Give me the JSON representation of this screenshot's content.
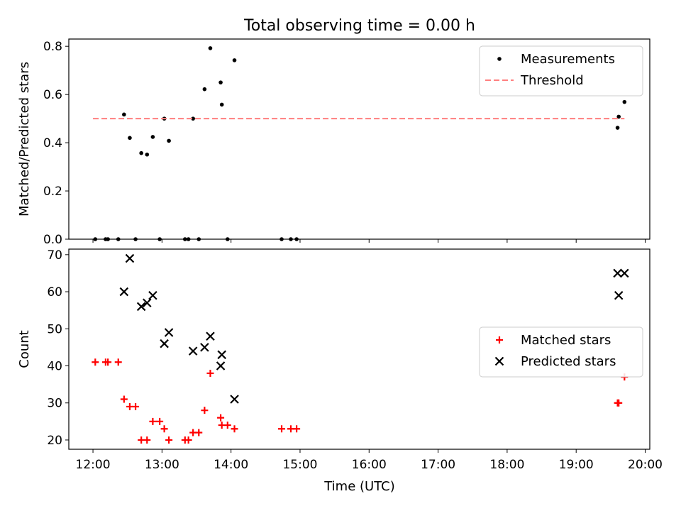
{
  "title": "Total observing time = 0.00 h",
  "xlabel": "Time (UTC)",
  "x_ticks": [
    "12:00",
    "13:00",
    "14:00",
    "15:00",
    "16:00",
    "17:00",
    "18:00",
    "19:00",
    "20:00"
  ],
  "chart_data": [
    {
      "type": "scatter",
      "ylabel": "Matched/Predicted stars",
      "xlim": [
        "11:39",
        "20:04"
      ],
      "ylim": [
        0,
        0.83
      ],
      "y_ticks": [
        "0.0",
        "0.2",
        "0.4",
        "0.6",
        "0.8"
      ],
      "legend_position": "upper right",
      "grid": false,
      "series": [
        {
          "name": "Measurements",
          "kind": "points",
          "color": "#000000",
          "points": [
            {
              "x": "12:02",
              "y": 0.0
            },
            {
              "x": "12:11",
              "y": 0.0
            },
            {
              "x": "12:13",
              "y": 0.0
            },
            {
              "x": "12:22",
              "y": 0.0
            },
            {
              "x": "12:27",
              "y": 0.517
            },
            {
              "x": "12:32",
              "y": 0.42
            },
            {
              "x": "12:37",
              "y": 0.0
            },
            {
              "x": "12:42",
              "y": 0.357
            },
            {
              "x": "12:47",
              "y": 0.351
            },
            {
              "x": "12:52",
              "y": 0.424
            },
            {
              "x": "12:58",
              "y": 0.0
            },
            {
              "x": "13:02",
              "y": 0.5
            },
            {
              "x": "13:06",
              "y": 0.408
            },
            {
              "x": "13:20",
              "y": 0.0
            },
            {
              "x": "13:23",
              "y": 0.0
            },
            {
              "x": "13:27",
              "y": 0.5
            },
            {
              "x": "13:32",
              "y": 0.0
            },
            {
              "x": "13:37",
              "y": 0.622
            },
            {
              "x": "13:42",
              "y": 0.792
            },
            {
              "x": "13:51",
              "y": 0.65
            },
            {
              "x": "13:52",
              "y": 0.558
            },
            {
              "x": "13:57",
              "y": 0.0
            },
            {
              "x": "14:03",
              "y": 0.742
            },
            {
              "x": "14:44",
              "y": 0.0
            },
            {
              "x": "14:52",
              "y": 0.0
            },
            {
              "x": "14:57",
              "y": 0.0
            },
            {
              "x": "19:36",
              "y": 0.462
            },
            {
              "x": "19:37",
              "y": 0.508
            },
            {
              "x": "19:42",
              "y": 0.569
            }
          ]
        },
        {
          "name": "Threshold",
          "kind": "dashed-line",
          "color": "#ff7f7f",
          "points": [
            {
              "x": "12:00",
              "y": 0.5
            },
            {
              "x": "19:42",
              "y": 0.5
            }
          ]
        }
      ]
    },
    {
      "type": "scatter",
      "ylabel": "Count",
      "xlim": [
        "11:39",
        "20:04"
      ],
      "ylim": [
        17.5,
        71.5
      ],
      "y_ticks": [
        "20",
        "30",
        "40",
        "50",
        "60",
        "70"
      ],
      "legend_position": "center right",
      "grid": false,
      "series": [
        {
          "name": "Matched stars",
          "marker": "+",
          "color": "#ff0000",
          "points": [
            {
              "x": "12:02",
              "y": 41
            },
            {
              "x": "12:11",
              "y": 41
            },
            {
              "x": "12:13",
              "y": 41
            },
            {
              "x": "12:22",
              "y": 41
            },
            {
              "x": "12:27",
              "y": 31
            },
            {
              "x": "12:32",
              "y": 29
            },
            {
              "x": "12:37",
              "y": 29
            },
            {
              "x": "12:42",
              "y": 20
            },
            {
              "x": "12:47",
              "y": 20
            },
            {
              "x": "12:52",
              "y": 25
            },
            {
              "x": "12:58",
              "y": 25
            },
            {
              "x": "13:02",
              "y": 23
            },
            {
              "x": "13:06",
              "y": 20
            },
            {
              "x": "13:20",
              "y": 20
            },
            {
              "x": "13:23",
              "y": 20
            },
            {
              "x": "13:27",
              "y": 22
            },
            {
              "x": "13:32",
              "y": 22
            },
            {
              "x": "13:37",
              "y": 28
            },
            {
              "x": "13:42",
              "y": 38
            },
            {
              "x": "13:51",
              "y": 26
            },
            {
              "x": "13:52",
              "y": 24
            },
            {
              "x": "13:57",
              "y": 24
            },
            {
              "x": "14:03",
              "y": 23
            },
            {
              "x": "14:44",
              "y": 23
            },
            {
              "x": "14:52",
              "y": 23
            },
            {
              "x": "14:57",
              "y": 23
            },
            {
              "x": "19:36",
              "y": 30
            },
            {
              "x": "19:37",
              "y": 30
            },
            {
              "x": "19:42",
              "y": 37
            }
          ]
        },
        {
          "name": "Predicted stars",
          "marker": "x",
          "color": "#000000",
          "points": [
            {
              "x": "12:27",
              "y": 60
            },
            {
              "x": "12:32",
              "y": 69
            },
            {
              "x": "12:42",
              "y": 56
            },
            {
              "x": "12:47",
              "y": 57
            },
            {
              "x": "12:52",
              "y": 59
            },
            {
              "x": "13:02",
              "y": 46
            },
            {
              "x": "13:06",
              "y": 49
            },
            {
              "x": "13:27",
              "y": 44
            },
            {
              "x": "13:37",
              "y": 45
            },
            {
              "x": "13:42",
              "y": 48
            },
            {
              "x": "13:51",
              "y": 40
            },
            {
              "x": "13:52",
              "y": 43
            },
            {
              "x": "14:03",
              "y": 31
            },
            {
              "x": "19:36",
              "y": 65
            },
            {
              "x": "19:37",
              "y": 59
            },
            {
              "x": "19:42",
              "y": 65
            }
          ]
        }
      ]
    }
  ]
}
